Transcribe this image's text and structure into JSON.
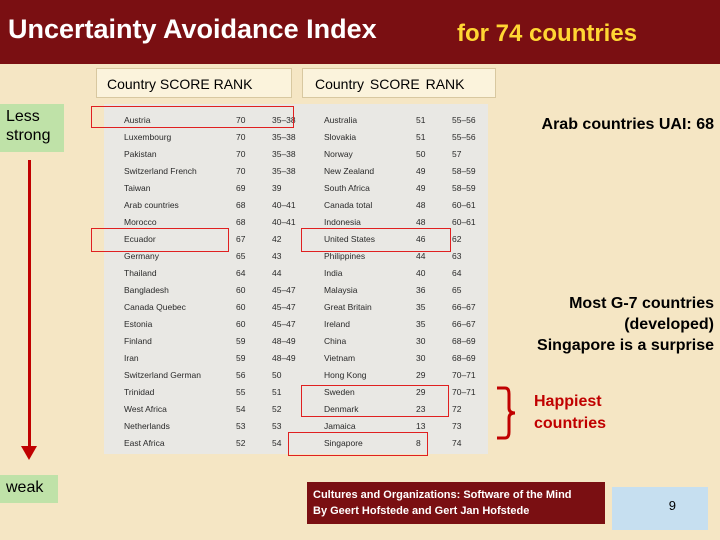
{
  "title": {
    "main": "Uncertainty Avoidance Index",
    "sub": "for 74 countries"
  },
  "headers": {
    "left": "Country  SCORE  RANK",
    "right": "Country    SCORE  RANK"
  },
  "side": {
    "less": "Less strong",
    "weak": "weak"
  },
  "left_rows": [
    {
      "country": "Austria",
      "score": "70",
      "rank": "35–38"
    },
    {
      "country": "Luxembourg",
      "score": "70",
      "rank": "35–38"
    },
    {
      "country": "Pakistan",
      "score": "70",
      "rank": "35–38"
    },
    {
      "country": "Switzerland French",
      "score": "70",
      "rank": "35–38"
    },
    {
      "country": "Taiwan",
      "score": "69",
      "rank": "39"
    },
    {
      "country": "Arab countries",
      "score": "68",
      "rank": "40–41"
    },
    {
      "country": "Morocco",
      "score": "68",
      "rank": "40–41"
    },
    {
      "country": "Ecuador",
      "score": "67",
      "rank": "42"
    },
    {
      "country": "Germany",
      "score": "65",
      "rank": "43"
    },
    {
      "country": "Thailand",
      "score": "64",
      "rank": "44"
    },
    {
      "country": "Bangladesh",
      "score": "60",
      "rank": "45–47"
    },
    {
      "country": "Canada Quebec",
      "score": "60",
      "rank": "45–47"
    },
    {
      "country": "Estonia",
      "score": "60",
      "rank": "45–47"
    },
    {
      "country": "Finland",
      "score": "59",
      "rank": "48–49"
    },
    {
      "country": "Iran",
      "score": "59",
      "rank": "48–49"
    },
    {
      "country": "Switzerland German",
      "score": "56",
      "rank": "50"
    },
    {
      "country": "Trinidad",
      "score": "55",
      "rank": "51"
    },
    {
      "country": "West Africa",
      "score": "54",
      "rank": "52"
    },
    {
      "country": "Netherlands",
      "score": "53",
      "rank": "53"
    },
    {
      "country": "East Africa",
      "score": "52",
      "rank": "54"
    }
  ],
  "right_rows": [
    {
      "country": "Australia",
      "score": "51",
      "rank": "55–56"
    },
    {
      "country": "Slovakia",
      "score": "51",
      "rank": "55–56"
    },
    {
      "country": "Norway",
      "score": "50",
      "rank": "57"
    },
    {
      "country": "New Zealand",
      "score": "49",
      "rank": "58–59"
    },
    {
      "country": "South Africa",
      "score": "49",
      "rank": "58–59"
    },
    {
      "country": "Canada total",
      "score": "48",
      "rank": "60–61"
    },
    {
      "country": "Indonesia",
      "score": "48",
      "rank": "60–61"
    },
    {
      "country": "United States",
      "score": "46",
      "rank": "62"
    },
    {
      "country": "Philippines",
      "score": "44",
      "rank": "63"
    },
    {
      "country": "India",
      "score": "40",
      "rank": "64"
    },
    {
      "country": "Malaysia",
      "score": "36",
      "rank": "65"
    },
    {
      "country": "Great Britain",
      "score": "35",
      "rank": "66–67"
    },
    {
      "country": "Ireland",
      "score": "35",
      "rank": "66–67"
    },
    {
      "country": "China",
      "score": "30",
      "rank": "68–69"
    },
    {
      "country": "Vietnam",
      "score": "30",
      "rank": "68–69"
    },
    {
      "country": "Hong Kong",
      "score": "29",
      "rank": "70–71"
    },
    {
      "country": "Sweden",
      "score": "29",
      "rank": "70–71"
    },
    {
      "country": "Denmark",
      "score": "23",
      "rank": "72"
    },
    {
      "country": "Jamaica",
      "score": "13",
      "rank": "73"
    },
    {
      "country": "Singapore",
      "score": "8",
      "rank": "74"
    }
  ],
  "notes": {
    "arab": "Arab countries UAI: 68",
    "g7_line1": "Most G-7 countries",
    "g7_line2": "(developed)",
    "g7_line3": "Singapore is a surprise",
    "happy_line1": "Happiest",
    "happy_line2": "countries"
  },
  "citation": {
    "line1": "Cultures and Organizations: Software of the Mind",
    "line2": "By Geert Hofstede and Gert Jan Hofstede"
  },
  "page_number": "9",
  "colors": {
    "title_bg": "#7a0f12",
    "accent_red": "#c00000",
    "side_green": "#bfe2a8",
    "bg": "#f5e6c4"
  }
}
